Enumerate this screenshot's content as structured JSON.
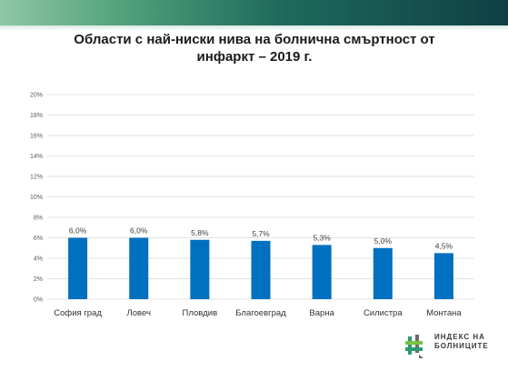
{
  "chart_data": {
    "type": "bar",
    "title": "Области с най-ниски нива на болнична смъртност от\nинфаркт – 2019 г.",
    "categories": [
      "София град",
      "Ловеч",
      "Пловдив",
      "Благоевград",
      "Варна",
      "Силистра",
      "Монтана"
    ],
    "values": [
      6.0,
      6.0,
      5.8,
      5.7,
      5.3,
      5.0,
      4.5
    ],
    "data_labels": [
      "6,0%",
      "6,0%",
      "5,8%",
      "5,7%",
      "5,3%",
      "5,0%",
      "4,5%"
    ],
    "yticks": [
      "0%",
      "2%",
      "4%",
      "6%",
      "8%",
      "10%",
      "12%",
      "14%",
      "16%",
      "18%",
      "20%"
    ],
    "ylim": [
      0,
      20
    ],
    "grid": true,
    "legend": "none",
    "bar_color": "#0070c0",
    "grid_color": "#d9d9d9"
  },
  "logo": {
    "text": "ИНДЕКС НА\nБОЛНИЦИТЕ",
    "icon": "hash-cross-icon"
  }
}
